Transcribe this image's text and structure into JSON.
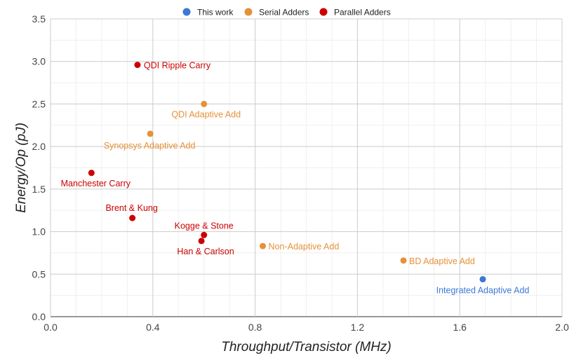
{
  "chart_data": {
    "type": "scatter",
    "xlabel": "Throughput/Transistor (MHz)",
    "ylabel": "Energy/Op (pJ)",
    "xlim": [
      0,
      2.0
    ],
    "ylim": [
      0,
      3.5
    ],
    "x_ticks": [
      "0.0",
      "0.4",
      "0.8",
      "1.2",
      "1.6",
      "2.0"
    ],
    "y_ticks": [
      "0.0",
      "0.5",
      "1.0",
      "1.5",
      "2.0",
      "2.5",
      "3.0",
      "3.5"
    ],
    "grid": true,
    "legend_position": "top",
    "series": [
      {
        "name": "This work",
        "color": "#3c78d8",
        "points": [
          {
            "label": "Integrated Adaptive Add",
            "x": 1.69,
            "y": 0.44
          }
        ]
      },
      {
        "name": "Serial Adders",
        "color": "#e69138",
        "points": [
          {
            "label": "QDI Adaptive Add",
            "x": 0.6,
            "y": 2.5
          },
          {
            "label": "Synopsys Adaptive Add",
            "x": 0.39,
            "y": 2.15
          },
          {
            "label": "Non-Adaptive Add",
            "x": 0.83,
            "y": 0.83
          },
          {
            "label": "BD Adaptive Add",
            "x": 1.38,
            "y": 0.66
          }
        ]
      },
      {
        "name": "Parallel Adders",
        "color": "#cc0000",
        "points": [
          {
            "label": "QDI Ripple Carry",
            "x": 0.34,
            "y": 2.96
          },
          {
            "label": "Manchester Carry",
            "x": 0.16,
            "y": 1.69
          },
          {
            "label": "Brent & Kung",
            "x": 0.32,
            "y": 1.16
          },
          {
            "label": "Kogge & Stone",
            "x": 0.6,
            "y": 0.96
          },
          {
            "label": "Han & Carlson",
            "x": 0.59,
            "y": 0.89
          }
        ]
      }
    ]
  }
}
